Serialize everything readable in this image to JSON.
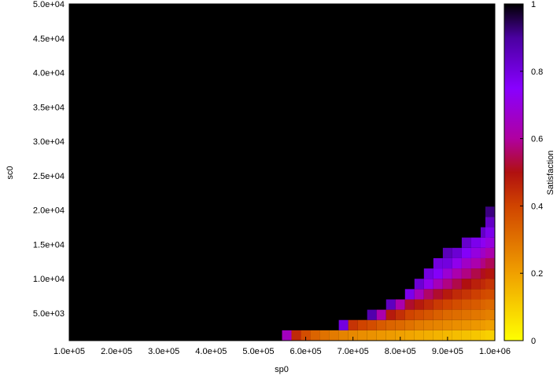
{
  "chart_data": {
    "type": "heatmap",
    "title": "",
    "xlabel": "sp0",
    "ylabel": "sc0",
    "colorbar_label": "Satisfaction",
    "x_range": [
      100000,
      1000000
    ],
    "y_range": [
      1000,
      50000
    ],
    "color_range": [
      0,
      1
    ],
    "x_ticks": [
      {
        "value": 100000,
        "label": "1.0e+05"
      },
      {
        "value": 200000,
        "label": "2.0e+05"
      },
      {
        "value": 300000,
        "label": "3.0e+05"
      },
      {
        "value": 400000,
        "label": "4.0e+05"
      },
      {
        "value": 500000,
        "label": "5.0e+05"
      },
      {
        "value": 600000,
        "label": "6.0e+05"
      },
      {
        "value": 700000,
        "label": "7.0e+05"
      },
      {
        "value": 800000,
        "label": "8.0e+05"
      },
      {
        "value": 900000,
        "label": "9.0e+05"
      },
      {
        "value": 1000000,
        "label": "1.0e+06"
      }
    ],
    "y_ticks": [
      {
        "value": 5000,
        "label": "5.0e+03"
      },
      {
        "value": 10000,
        "label": "1.0e+04"
      },
      {
        "value": 15000,
        "label": "1.5e+04"
      },
      {
        "value": 20000,
        "label": "2.0e+04"
      },
      {
        "value": 25000,
        "label": "2.5e+04"
      },
      {
        "value": 30000,
        "label": "3.0e+04"
      },
      {
        "value": 35000,
        "label": "3.5e+04"
      },
      {
        "value": 40000,
        "label": "4.0e+04"
      },
      {
        "value": 45000,
        "label": "4.5e+04"
      },
      {
        "value": 50000,
        "label": "5.0e+04"
      }
    ],
    "colorbar_ticks": [
      {
        "value": 0,
        "label": "0"
      },
      {
        "value": 0.2,
        "label": "0.2"
      },
      {
        "value": 0.4,
        "label": "0.4"
      },
      {
        "value": 0.6,
        "label": "0.6"
      },
      {
        "value": 0.8,
        "label": "0.8"
      },
      {
        "value": 1,
        "label": "1"
      }
    ],
    "background_value": 1,
    "x_cell_width": 20000,
    "y_cell_height": 1500,
    "y_cell_start": 1000,
    "columns": [
      {
        "x": 560000,
        "values": [
          0.65
        ]
      },
      {
        "x": 580000,
        "values": [
          0.45
        ]
      },
      {
        "x": 600000,
        "values": [
          0.38
        ]
      },
      {
        "x": 620000,
        "values": [
          0.33
        ]
      },
      {
        "x": 640000,
        "values": [
          0.3
        ]
      },
      {
        "x": 660000,
        "values": [
          0.28
        ]
      },
      {
        "x": 680000,
        "values": [
          0.26,
          0.8
        ]
      },
      {
        "x": 700000,
        "values": [
          0.25,
          0.43
        ]
      },
      {
        "x": 720000,
        "values": [
          0.24,
          0.4
        ]
      },
      {
        "x": 740000,
        "values": [
          0.23,
          0.38,
          0.88
        ]
      },
      {
        "x": 760000,
        "values": [
          0.22,
          0.35,
          0.62
        ]
      },
      {
        "x": 780000,
        "values": [
          0.21,
          0.33,
          0.48,
          0.85
        ]
      },
      {
        "x": 800000,
        "values": [
          0.2,
          0.32,
          0.44,
          0.62
        ]
      },
      {
        "x": 820000,
        "values": [
          0.19,
          0.3,
          0.4,
          0.52,
          0.78
        ]
      },
      {
        "x": 840000,
        "values": [
          0.18,
          0.28,
          0.38,
          0.48,
          0.64,
          0.82
        ]
      },
      {
        "x": 860000,
        "values": [
          0.17,
          0.27,
          0.36,
          0.45,
          0.56,
          0.72,
          0.8
        ]
      },
      {
        "x": 880000,
        "values": [
          0.16,
          0.26,
          0.34,
          0.42,
          0.52,
          0.64,
          0.76,
          0.8
        ]
      },
      {
        "x": 900000,
        "values": [
          0.15,
          0.25,
          0.32,
          0.4,
          0.48,
          0.58,
          0.68,
          0.8,
          0.86
        ]
      },
      {
        "x": 920000,
        "values": [
          0.14,
          0.24,
          0.31,
          0.38,
          0.45,
          0.54,
          0.62,
          0.72,
          0.82
        ]
      },
      {
        "x": 940000,
        "values": [
          0.13,
          0.23,
          0.3,
          0.36,
          0.43,
          0.5,
          0.58,
          0.66,
          0.76,
          0.83
        ]
      },
      {
        "x": 960000,
        "values": [
          0.12,
          0.22,
          0.29,
          0.35,
          0.41,
          0.47,
          0.54,
          0.62,
          0.7,
          0.78
        ]
      },
      {
        "x": 980000,
        "values": [
          0.11,
          0.21,
          0.28,
          0.33,
          0.39,
          0.45,
          0.51,
          0.58,
          0.66,
          0.73,
          0.84
        ]
      },
      {
        "x": 990000,
        "values": [
          0.1,
          0.2,
          0.27,
          0.32,
          0.38,
          0.43,
          0.49,
          0.55,
          0.62,
          0.7,
          0.78,
          0.84,
          0.92
        ]
      }
    ]
  }
}
